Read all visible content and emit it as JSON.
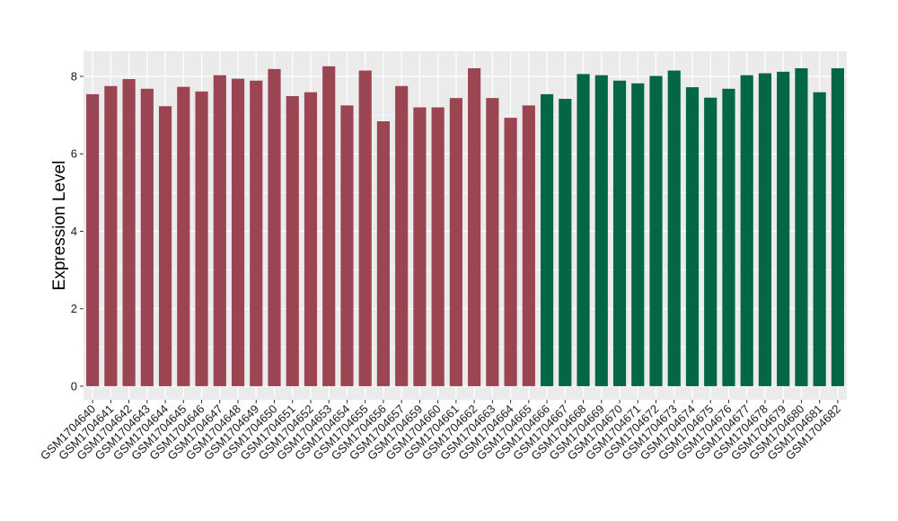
{
  "chart_data": {
    "type": "bar",
    "title": "",
    "xlabel": "",
    "ylabel": "Expression Level",
    "ylim": [
      -0.35,
      8.65
    ],
    "yticks": [
      0,
      2,
      4,
      6,
      8
    ],
    "grid": true,
    "legend": "none",
    "colors": {
      "group1": "#9b4452",
      "group2": "#036644",
      "panel": "#ebebeb",
      "grid": "#ffffff"
    },
    "categories": [
      "GSM1704640",
      "GSM1704641",
      "GSM1704642",
      "GSM1704643",
      "GSM1704644",
      "GSM1704645",
      "GSM1704646",
      "GSM1704647",
      "GSM1704648",
      "GSM1704649",
      "GSM1704650",
      "GSM1704651",
      "GSM1704652",
      "GSM1704653",
      "GSM1704654",
      "GSM1704655",
      "GSM1704656",
      "GSM1704657",
      "GSM1704659",
      "GSM1704660",
      "GSM1704661",
      "GSM1704662",
      "GSM1704663",
      "GSM1704664",
      "GSM1704665",
      "GSM1704666",
      "GSM1704667",
      "GSM1704668",
      "GSM1704669",
      "GSM1704670",
      "GSM1704671",
      "GSM1704672",
      "GSM1704673",
      "GSM1704674",
      "GSM1704675",
      "GSM1704676",
      "GSM1704677",
      "GSM1704678",
      "GSM1704679",
      "GSM1704680",
      "GSM1704681",
      "GSM1704682"
    ],
    "values": [
      7.54,
      7.75,
      7.93,
      7.68,
      7.23,
      7.73,
      7.61,
      8.03,
      7.94,
      7.89,
      8.19,
      7.49,
      7.59,
      8.26,
      7.25,
      8.15,
      6.84,
      7.75,
      7.2,
      7.2,
      7.44,
      8.21,
      7.44,
      6.93,
      7.25,
      7.54,
      7.42,
      8.06,
      8.03,
      7.89,
      7.82,
      8.01,
      8.15,
      7.72,
      7.45,
      7.68,
      8.03,
      8.08,
      8.12,
      8.21,
      7.59,
      8.21
    ],
    "groups": [
      1,
      1,
      1,
      1,
      1,
      1,
      1,
      1,
      1,
      1,
      1,
      1,
      1,
      1,
      1,
      1,
      1,
      1,
      1,
      1,
      1,
      1,
      1,
      1,
      1,
      2,
      2,
      2,
      2,
      2,
      2,
      2,
      2,
      2,
      2,
      2,
      2,
      2,
      2,
      2,
      2,
      2
    ]
  }
}
